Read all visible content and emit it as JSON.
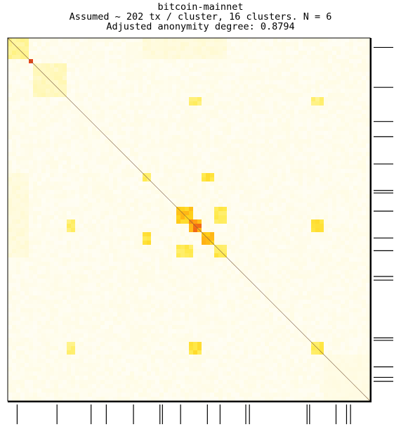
{
  "title_lines": [
    "bitcoin-mainnet",
    "Assumed ~ 202 tx / cluster, 16 clusters. N = 6",
    "Adjusted anonymity degree: 0.8794"
  ],
  "chart_data": {
    "type": "heatmap",
    "title": "bitcoin-mainnet",
    "subtitle": [
      "Assumed ~ 202 tx / cluster, 16 clusters. N = 6",
      "Adjusted anonymity degree: 0.8794"
    ],
    "n_clusters": 16,
    "tx_per_cluster": 202,
    "N": 6,
    "adjusted_anonymity_degree": 0.8794,
    "colormap": [
      "#ffffff",
      "#fffbe0",
      "#fff59a",
      "#ffe94a",
      "#ffd21a",
      "#ff9c10",
      "#e8461a"
    ],
    "diagonal_color": "#7a5a40",
    "hotspots": [
      {
        "r0": 0.0,
        "r1": 0.06,
        "c0": 0.0,
        "c1": 0.06,
        "level": 0.35
      },
      {
        "r0": 0.06,
        "r1": 0.075,
        "c0": 0.06,
        "c1": 0.075,
        "level": 0.95
      },
      {
        "r0": 0.075,
        "r1": 0.16,
        "c0": 0.075,
        "c1": 0.16,
        "level": 0.25
      },
      {
        "r0": 0.47,
        "r1": 0.51,
        "c0": 0.47,
        "c1": 0.51,
        "level": 0.7
      },
      {
        "r0": 0.505,
        "r1": 0.535,
        "c0": 0.505,
        "c1": 0.535,
        "level": 0.85
      },
      {
        "r0": 0.535,
        "r1": 0.575,
        "c0": 0.535,
        "c1": 0.575,
        "level": 0.7
      },
      {
        "r0": 0.575,
        "r1": 0.61,
        "c0": 0.575,
        "c1": 0.61,
        "level": 0.5
      },
      {
        "r0": 0.37,
        "r1": 0.4,
        "c0": 0.37,
        "c1": 0.4,
        "level": 0.45
      },
      {
        "r0": 0.37,
        "r1": 0.4,
        "c0": 0.535,
        "c1": 0.575,
        "level": 0.55
      },
      {
        "r0": 0.535,
        "r1": 0.575,
        "c0": 0.37,
        "c1": 0.4,
        "level": 0.55
      },
      {
        "r0": 0.47,
        "r1": 0.51,
        "c0": 0.575,
        "c1": 0.61,
        "level": 0.5
      },
      {
        "r0": 0.575,
        "r1": 0.61,
        "c0": 0.47,
        "c1": 0.51,
        "level": 0.5
      },
      {
        "r0": 0.505,
        "r1": 0.535,
        "c0": 0.84,
        "c1": 0.87,
        "level": 0.55
      },
      {
        "r0": 0.84,
        "r1": 0.87,
        "c0": 0.505,
        "c1": 0.535,
        "level": 0.55
      },
      {
        "r0": 0.505,
        "r1": 0.535,
        "c0": 0.16,
        "c1": 0.19,
        "level": 0.45
      },
      {
        "r0": 0.16,
        "r1": 0.19,
        "c0": 0.505,
        "c1": 0.535,
        "level": 0.45
      },
      {
        "r0": 0.84,
        "r1": 0.87,
        "c0": 0.16,
        "c1": 0.19,
        "level": 0.4
      },
      {
        "r0": 0.16,
        "r1": 0.19,
        "c0": 0.84,
        "c1": 0.87,
        "level": 0.4
      },
      {
        "r0": 0.84,
        "r1": 0.87,
        "c0": 0.84,
        "c1": 0.87,
        "level": 0.5
      },
      {
        "r0": 0.0,
        "r1": 0.06,
        "c0": 0.37,
        "c1": 0.61,
        "level": 0.18
      },
      {
        "r0": 0.37,
        "r1": 0.61,
        "c0": 0.0,
        "c1": 0.06,
        "level": 0.18
      },
      {
        "r0": 0.87,
        "r1": 1.0,
        "c0": 0.87,
        "c1": 1.0,
        "level": 0.15
      }
    ],
    "cluster_boundaries": [
      0.026,
      0.136,
      0.23,
      0.272,
      0.347,
      0.42,
      0.427,
      0.477,
      0.551,
      0.586,
      0.657,
      0.667,
      0.826,
      0.833,
      0.906,
      0.935,
      0.946
    ]
  }
}
